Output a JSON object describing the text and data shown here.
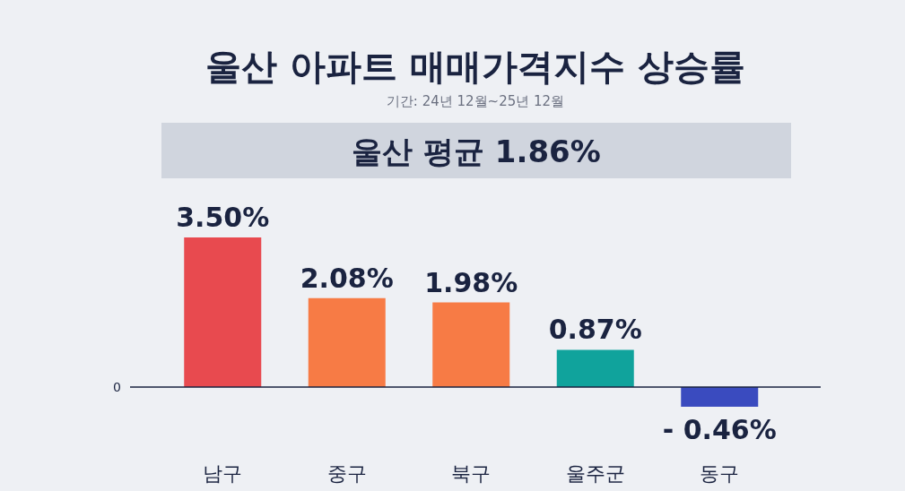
{
  "chart_data": {
    "type": "bar",
    "title": "울산 아파트 매매가격지수 상승률",
    "subtitle": "기간: 24년 12월~25년 12월",
    "annotations": [
      "울산 평균 1.86%",
      "0"
    ],
    "categories": [
      "남구",
      "중구",
      "북구",
      "울주군",
      "동구"
    ],
    "values": [
      3.5,
      2.08,
      1.98,
      0.87,
      -0.46
    ],
    "colors": [
      "#e84a4f",
      "#f77b45",
      "#f77b45",
      "#10a39c",
      "#3a4bbf"
    ],
    "value_labels": [
      "3.50%",
      "2.08%",
      "1.98%",
      "0.87%",
      "- 0.46%"
    ]
  }
}
